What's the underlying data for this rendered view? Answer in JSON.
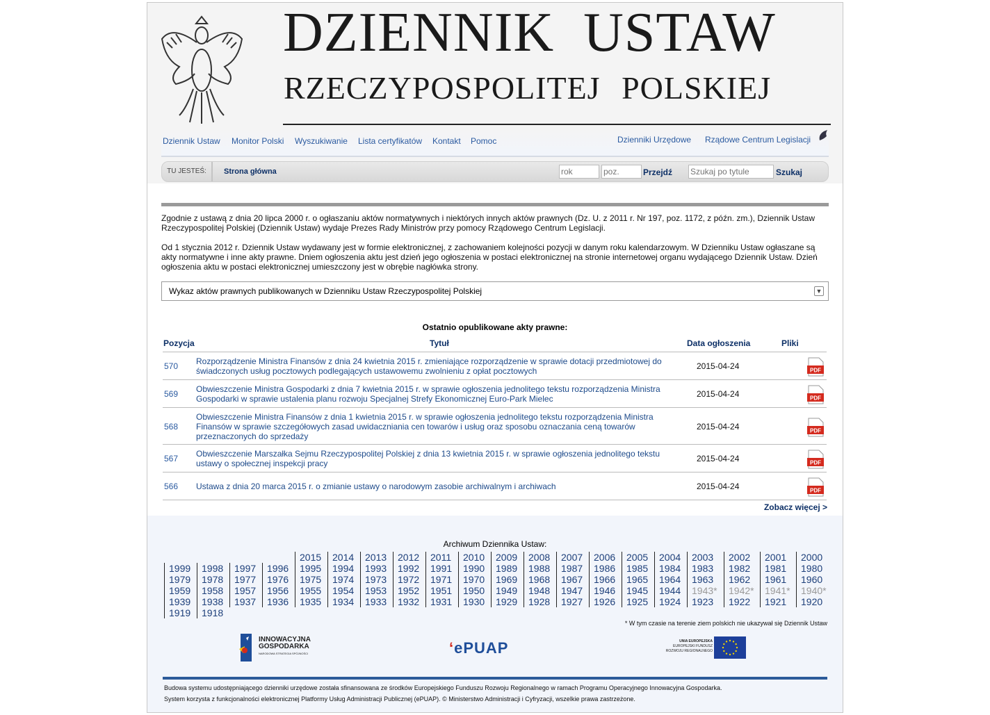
{
  "header": {
    "title_line1": "DZIENNIK  USTAW",
    "title_line2": "RZECZYPOSPOLITEJ POLSKIEJ"
  },
  "nav": {
    "left": [
      "Dziennik Ustaw",
      "Monitor Polski",
      "Wyszukiwanie",
      "Lista certyfikatów",
      "Kontakt",
      "Pomoc"
    ],
    "right": [
      "Dzienniki Urzędowe",
      "Rządowe Centrum Legislacji"
    ],
    "rcl_logo": "RCL"
  },
  "breadcrumb": {
    "label": "TU JESTEŚ:",
    "current": "Strona główna",
    "rok_placeholder": "rok",
    "poz_placeholder": "poz.",
    "go": "Przejdź",
    "search_placeholder": "Szukaj po tytule",
    "search": "Szukaj"
  },
  "intro": [
    "Zgodnie z ustawą z dnia 20 lipca 2000 r. o ogłaszaniu aktów normatywnych i niektórych innych aktów prawnych (Dz. U. z 2011 r. Nr 197, poz. 1172, z późn. zm.), Dziennik Ustaw Rzeczypospolitej Polskiej (Dziennik Ustaw) wydaje Prezes Rady Ministrów przy pomocy Rządowego Centrum Legislacji.",
    "Od 1 stycznia 2012 r. Dziennik Ustaw wydawany jest w formie elektronicznej, z zachowaniem kolejności pozycji w danym roku kalendarzowym. W Dzienniku Ustaw ogłaszane są akty normatywne i inne akty prawne. Dniem ogłoszenia aktu jest dzień jego ogłoszenia w postaci elektronicznej na stronie internetowej organu wydającego Dziennik Ustaw. Dzień ogłoszenia aktu w postaci elektronicznej umieszczony jest w obrębie nagłówka strony."
  ],
  "select": {
    "value": "Wykaz aktów prawnych publikowanych w Dzienniku Ustaw Rzeczypospolitej Polskiej"
  },
  "recent": {
    "title": "Ostatnio opublikowane akty prawne:",
    "headers": [
      "Pozycja",
      "Tytuł",
      "Data ogłoszenia",
      "Pliki"
    ],
    "rows": [
      {
        "pos": "570",
        "title": "Rozporządzenie Ministra Finansów z dnia 24 kwietnia 2015 r. zmieniające rozporządzenie w sprawie dotacji przedmiotowej do świadczonych usług pocztowych podlegających ustawowemu zwolnieniu z opłat pocztowych",
        "date": "2015-04-24",
        "file": "PDF"
      },
      {
        "pos": "569",
        "title": "Obwieszczenie Ministra Gospodarki z dnia 7 kwietnia 2015 r. w sprawie ogłoszenia jednolitego tekstu rozporządzenia Ministra Gospodarki w sprawie ustalenia planu rozwoju Specjalnej Strefy Ekonomicznej Euro-Park Mielec",
        "date": "2015-04-24",
        "file": "PDF"
      },
      {
        "pos": "568",
        "title": "Obwieszczenie Ministra Finansów z dnia 1 kwietnia 2015 r. w sprawie ogłoszenia jednolitego tekstu rozporządzenia Ministra Finansów w sprawie szczegółowych zasad uwidaczniania cen towarów i usług oraz sposobu oznaczania ceną towarów przeznaczonych do sprzedaży",
        "date": "2015-04-24",
        "file": "PDF"
      },
      {
        "pos": "567",
        "title": "Obwieszczenie Marszałka Sejmu Rzeczypospolitej Polskiej z dnia 13 kwietnia 2015 r. w sprawie ogłoszenia jednolitego tekstu ustawy o społecznej inspekcji pracy",
        "date": "2015-04-24",
        "file": "PDF"
      },
      {
        "pos": "566",
        "title": "Ustawa z dnia 20 marca 2015 r. o zmianie ustawy o narodowym zasobie archiwalnym i archiwach",
        "date": "2015-04-24",
        "file": "PDF"
      }
    ],
    "more": "Zobacz więcej >"
  },
  "archive": {
    "title": "Archiwum Dziennika Ustaw:",
    "columns": [
      [
        "1999",
        "1979",
        "1959",
        "1939",
        "1919"
      ],
      [
        "1998",
        "1978",
        "1958",
        "1938",
        "1918"
      ],
      [
        "1997",
        "1977",
        "1957",
        "1937"
      ],
      [
        "1996",
        "1976",
        "1956",
        "1936"
      ],
      [
        "2015",
        "1995",
        "1975",
        "1955",
        "1935"
      ],
      [
        "2014",
        "1994",
        "1974",
        "1954",
        "1934"
      ],
      [
        "2013",
        "1993",
        "1973",
        "1953",
        "1933"
      ],
      [
        "2012",
        "1992",
        "1972",
        "1952",
        "1932"
      ],
      [
        "2011",
        "1991",
        "1971",
        "1951",
        "1931"
      ],
      [
        "2010",
        "1990",
        "1970",
        "1950",
        "1930"
      ],
      [
        "2009",
        "1989",
        "1969",
        "1949",
        "1929"
      ],
      [
        "2008",
        "1988",
        "1968",
        "1948",
        "1928"
      ],
      [
        "2007",
        "1987",
        "1967",
        "1947",
        "1927"
      ],
      [
        "2006",
        "1986",
        "1966",
        "1946",
        "1926"
      ],
      [
        "2005",
        "1985",
        "1965",
        "1945",
        "1925"
      ],
      [
        "2004",
        "1984",
        "1964",
        "1944",
        "1924"
      ],
      [
        "2003",
        "1983",
        "1963",
        "1943*",
        "1923"
      ],
      [
        "2002",
        "1982",
        "1962",
        "1942*",
        "1922"
      ],
      [
        "2001",
        "1981",
        "1961",
        "1941*",
        "1921"
      ],
      [
        "2000",
        "1980",
        "1960",
        "1940*",
        "1920"
      ]
    ],
    "unavailable": [
      "1943*",
      "1942*",
      "1941*",
      "1940*"
    ],
    "note": "* W tym czasie na terenie ziem polskich nie ukazywał się Dziennik Ustaw"
  },
  "logos": {
    "ig_line1": "INNOWACYJNA",
    "ig_line2": "GOSPODARKA",
    "ig_line3": "NARODOWA STRATEGIA SPÓJNOŚCI",
    "epuap": "ePUAP",
    "ue_line1": "UNIA EUROPEJSKA",
    "ue_line2": "EUROPEJSKI FUNDUSZ",
    "ue_line3": "ROZWOJU REGIONALNEGO"
  },
  "footer": [
    "Budowa systemu udostępniającego dzienniki urzędowe została sfinansowana ze środków Europejskiego Funduszu Rozwoju Regionalnego w ramach Programu Operacyjnego Innowacyjna Gospodarka.",
    "System korzysta z funkcjonalności elektronicznej Platformy Usług Administracji Publicznej (ePUAP). © Ministerstwo Administracji i Cyfryzacji, wszelkie prawa zastrzeżone."
  ],
  "colors": {
    "link": "#2a5aa0",
    "dark_link": "#0c2f66",
    "footer_bar": "#2d5b9a",
    "pdf": "#d42a1e"
  }
}
